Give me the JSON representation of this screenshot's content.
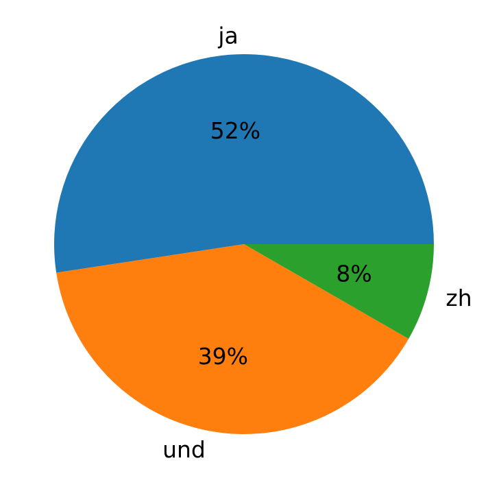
{
  "chart_data": {
    "type": "pie",
    "start_angle_deg": 0,
    "direction": "counterclockwise",
    "slices": [
      {
        "label": "ja",
        "value": 52.4,
        "pct_text": "52%",
        "color": "#1f77b4"
      },
      {
        "label": "und",
        "value": 39.3,
        "pct_text": "39%",
        "color": "#ff7f0e"
      },
      {
        "label": "zh",
        "value": 8.3,
        "pct_text": "8%",
        "color": "#2ca02c"
      }
    ]
  }
}
